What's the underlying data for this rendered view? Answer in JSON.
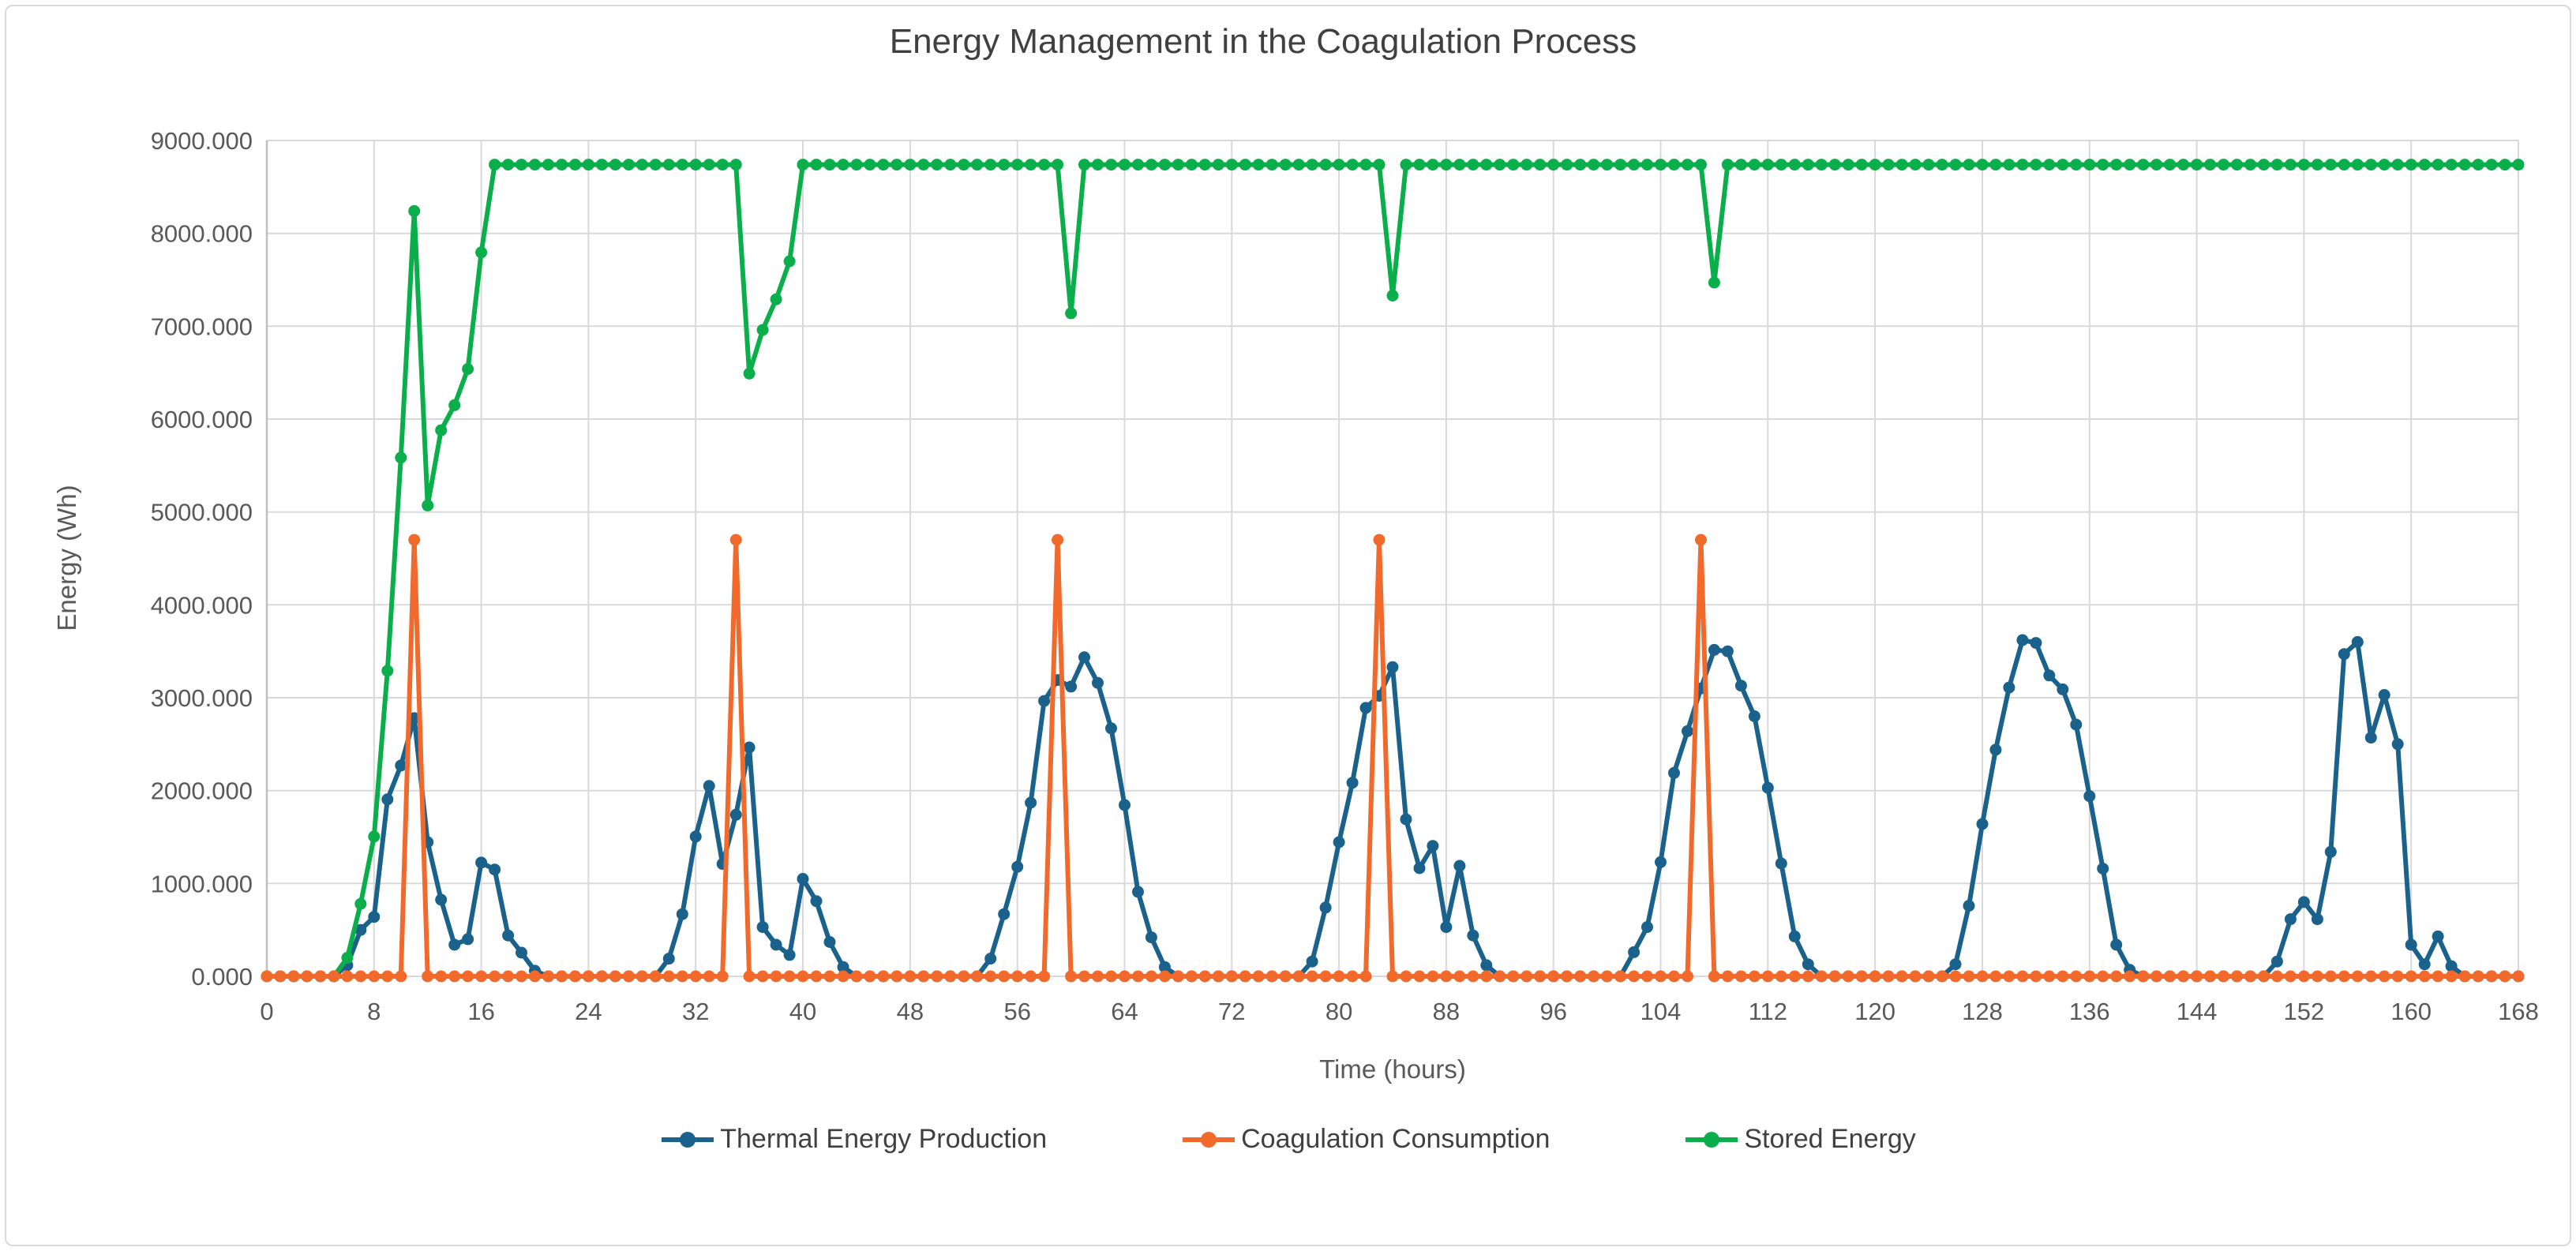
{
  "window": {
    "background": "#ffffff",
    "frame_border_color": "#d9d9d9"
  },
  "styles": {
    "grid_color": "#d9d9d9",
    "axis_line_color": "#bfbfbf",
    "tick_label_color": "#595959",
    "title_color": "#404040",
    "legend_text_color": "#404040"
  },
  "chart_data": {
    "type": "line",
    "title": "Energy Management in the Coagulation Process",
    "xlabel": "Time (hours)",
    "ylabel": "Energy (Wh)",
    "x_min": 0,
    "x_max": 168,
    "x_step": 1,
    "x_tick_step": 8,
    "y_min": 0,
    "y_max": 9000,
    "y_tick_step": 1000,
    "y_tick_decimals": 3,
    "grid": true,
    "legend_position": "bottom",
    "markers": true,
    "series": [
      {
        "name": "Thermal Energy Production",
        "color": "#1A628B",
        "values": [
          0,
          0,
          0,
          0,
          0,
          0,
          120,
          500,
          640,
          1905,
          2270,
          2780,
          1445,
          825,
          340,
          400,
          1225,
          1150,
          440,
          255,
          60,
          0,
          0,
          0,
          0,
          0,
          0,
          0,
          0,
          0,
          190,
          670,
          1505,
          2050,
          1210,
          1740,
          2465,
          530,
          340,
          230,
          1050,
          810,
          370,
          100,
          0,
          0,
          0,
          0,
          0,
          0,
          0,
          0,
          0,
          0,
          190,
          670,
          1180,
          1870,
          2965,
          3190,
          3120,
          3435,
          3160,
          2670,
          1845,
          910,
          420,
          100,
          0,
          0,
          0,
          0,
          0,
          0,
          0,
          0,
          0,
          0,
          160,
          740,
          1445,
          2085,
          2890,
          3020,
          3330,
          1690,
          1165,
          1405,
          530,
          1190,
          440,
          120,
          0,
          0,
          0,
          0,
          0,
          0,
          0,
          0,
          0,
          0,
          260,
          530,
          1230,
          2190,
          2640,
          3100,
          3515,
          3500,
          3130,
          2800,
          2030,
          1215,
          430,
          130,
          0,
          0,
          0,
          0,
          0,
          0,
          0,
          0,
          0,
          0,
          130,
          760,
          1640,
          2440,
          3110,
          3620,
          3590,
          3240,
          3090,
          2710,
          1940,
          1160,
          340,
          70,
          0,
          0,
          0,
          0,
          0,
          0,
          0,
          0,
          0,
          0,
          160,
          615,
          800,
          615,
          1340,
          3470,
          3600,
          2570,
          3030,
          2500,
          340,
          130,
          430,
          110,
          0,
          0,
          0,
          0,
          0
        ]
      },
      {
        "name": "Coagulation Consumption",
        "color": "#F2692C",
        "values": [
          0,
          0,
          0,
          0,
          0,
          0,
          0,
          0,
          0,
          0,
          0,
          4700,
          0,
          0,
          0,
          0,
          0,
          0,
          0,
          0,
          0,
          0,
          0,
          0,
          0,
          0,
          0,
          0,
          0,
          0,
          0,
          0,
          0,
          0,
          0,
          4700,
          0,
          0,
          0,
          0,
          0,
          0,
          0,
          0,
          0,
          0,
          0,
          0,
          0,
          0,
          0,
          0,
          0,
          0,
          0,
          0,
          0,
          0,
          0,
          4700,
          0,
          0,
          0,
          0,
          0,
          0,
          0,
          0,
          0,
          0,
          0,
          0,
          0,
          0,
          0,
          0,
          0,
          0,
          0,
          0,
          0,
          0,
          0,
          4700,
          0,
          0,
          0,
          0,
          0,
          0,
          0,
          0,
          0,
          0,
          0,
          0,
          0,
          0,
          0,
          0,
          0,
          0,
          0,
          0,
          0,
          0,
          0,
          4700,
          0,
          0,
          0,
          0,
          0,
          0,
          0,
          0,
          0,
          0,
          0,
          0,
          0,
          0,
          0,
          0,
          0,
          0,
          0,
          0,
          0,
          0,
          0,
          0,
          0,
          0,
          0,
          0,
          0,
          0,
          0,
          0,
          0,
          0,
          0,
          0,
          0,
          0,
          0,
          0,
          0,
          0,
          0,
          0,
          0,
          0,
          0,
          0,
          0,
          0,
          0,
          0,
          0,
          0,
          0,
          0,
          0,
          0,
          0,
          0,
          0
        ]
      },
      {
        "name": "Stored Energy",
        "color": "#0AAF4B",
        "values": [
          0,
          0,
          0,
          0,
          0,
          0,
          200,
          780,
          1505,
          3290,
          5585,
          8240,
          5070,
          5880,
          6150,
          6540,
          7795,
          8740,
          8740,
          8740,
          8740,
          8740,
          8740,
          8740,
          8740,
          8740,
          8740,
          8740,
          8740,
          8740,
          8740,
          8740,
          8740,
          8740,
          8740,
          8740,
          6490,
          6960,
          7290,
          7700,
          8740,
          8740,
          8740,
          8740,
          8740,
          8740,
          8740,
          8740,
          8740,
          8740,
          8740,
          8740,
          8740,
          8740,
          8740,
          8740,
          8740,
          8740,
          8740,
          8740,
          7140,
          8740,
          8740,
          8740,
          8740,
          8740,
          8740,
          8740,
          8740,
          8740,
          8740,
          8740,
          8740,
          8740,
          8740,
          8740,
          8740,
          8740,
          8740,
          8740,
          8740,
          8740,
          8740,
          8740,
          7330,
          8740,
          8740,
          8740,
          8740,
          8740,
          8740,
          8740,
          8740,
          8740,
          8740,
          8740,
          8740,
          8740,
          8740,
          8740,
          8740,
          8740,
          8740,
          8740,
          8740,
          8740,
          8740,
          8740,
          7470,
          8740,
          8740,
          8740,
          8740,
          8740,
          8740,
          8740,
          8740,
          8740,
          8740,
          8740,
          8740,
          8740,
          8740,
          8740,
          8740,
          8740,
          8740,
          8740,
          8740,
          8740,
          8740,
          8740,
          8740,
          8740,
          8740,
          8740,
          8740,
          8740,
          8740,
          8740,
          8740,
          8740,
          8740,
          8740,
          8740,
          8740,
          8740,
          8740,
          8740,
          8740,
          8740,
          8740,
          8740,
          8740,
          8740,
          8740,
          8740,
          8740,
          8740,
          8740,
          8740,
          8740,
          8740,
          8740,
          8740,
          8740,
          8740,
          8740,
          8740
        ]
      }
    ]
  }
}
